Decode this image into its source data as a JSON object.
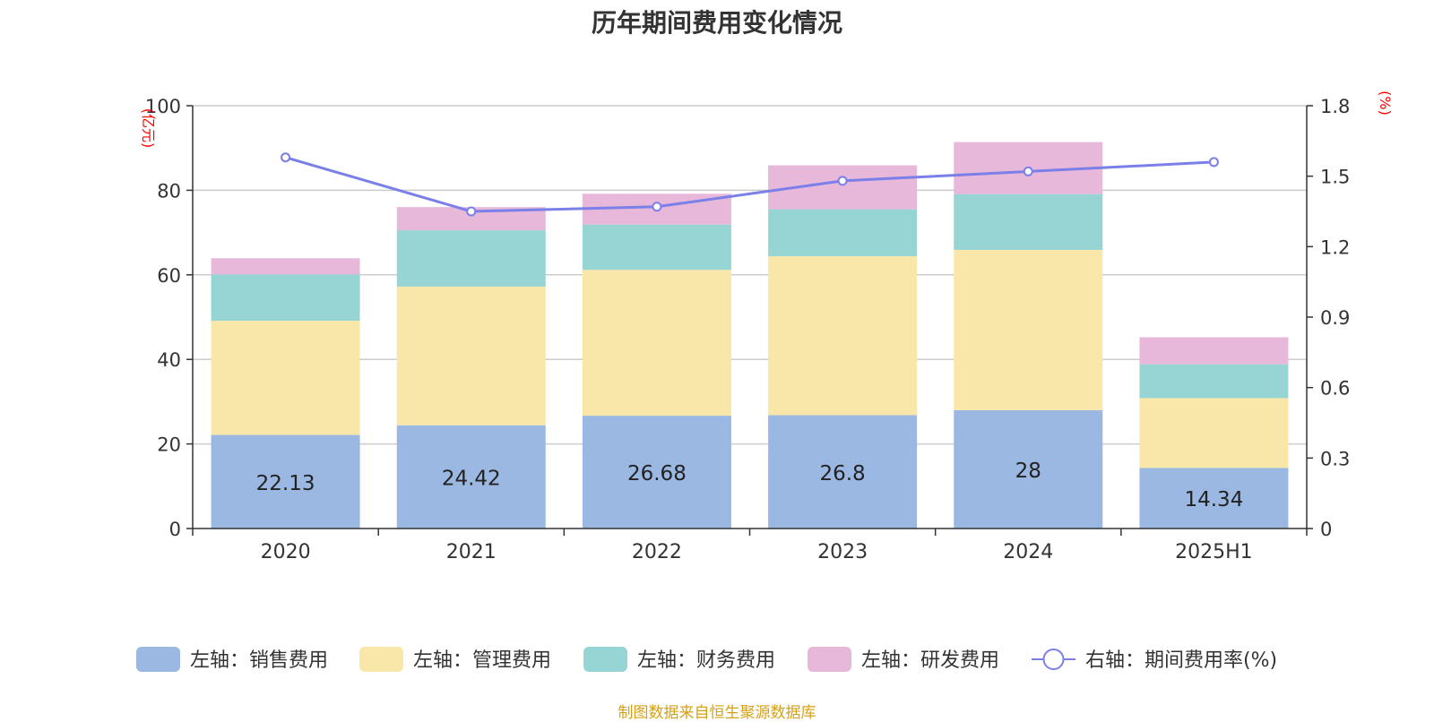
{
  "chart_data": {
    "type": "bar",
    "title": "历年期间费用变化情况",
    "categories": [
      "2020",
      "2021",
      "2022",
      "2023",
      "2024",
      "2025H1"
    ],
    "y_left": {
      "unit_label": "(亿元)",
      "ylim": [
        0,
        100
      ],
      "ticks": [
        "0",
        "20",
        "40",
        "60",
        "80",
        "100"
      ]
    },
    "y_right": {
      "unit_label": "(%)",
      "ylim": [
        0,
        1.8
      ],
      "ticks": [
        "0",
        "0.3",
        "0.6",
        "0.9",
        "1.2",
        "1.5",
        "1.8"
      ]
    },
    "series": [
      {
        "name": "左轴：销售费用",
        "type": "bar",
        "stack": true,
        "axis": "left",
        "color": "#9bb8e3",
        "values": [
          22.13,
          24.42,
          26.68,
          26.8,
          28,
          14.34
        ],
        "labels": [
          "22.13",
          "24.42",
          "26.68",
          "26.8",
          "28",
          "14.34"
        ]
      },
      {
        "name": "左轴：管理费用",
        "type": "bar",
        "stack": true,
        "axis": "left",
        "color": "#f8e7a8",
        "values": [
          27.0,
          32.8,
          34.5,
          37.6,
          37.9,
          16.5
        ]
      },
      {
        "name": "左轴：财务费用",
        "type": "bar",
        "stack": true,
        "axis": "left",
        "color": "#97d4d4",
        "values": [
          11.0,
          13.3,
          10.7,
          11.1,
          13.2,
          8.0
        ]
      },
      {
        "name": "左轴：研发费用",
        "type": "bar",
        "stack": true,
        "axis": "left",
        "color": "#e8b8da",
        "values": [
          3.8,
          5.5,
          7.3,
          10.4,
          12.3,
          6.4
        ]
      },
      {
        "name": "右轴：期间费用率(%)",
        "type": "line",
        "axis": "right",
        "color": "#7b7fe8",
        "values": [
          1.58,
          1.35,
          1.37,
          1.48,
          1.52,
          1.56
        ]
      }
    ],
    "grid": true,
    "legend_position": "bottom"
  },
  "source": "制图数据来自恒生聚源数据库"
}
